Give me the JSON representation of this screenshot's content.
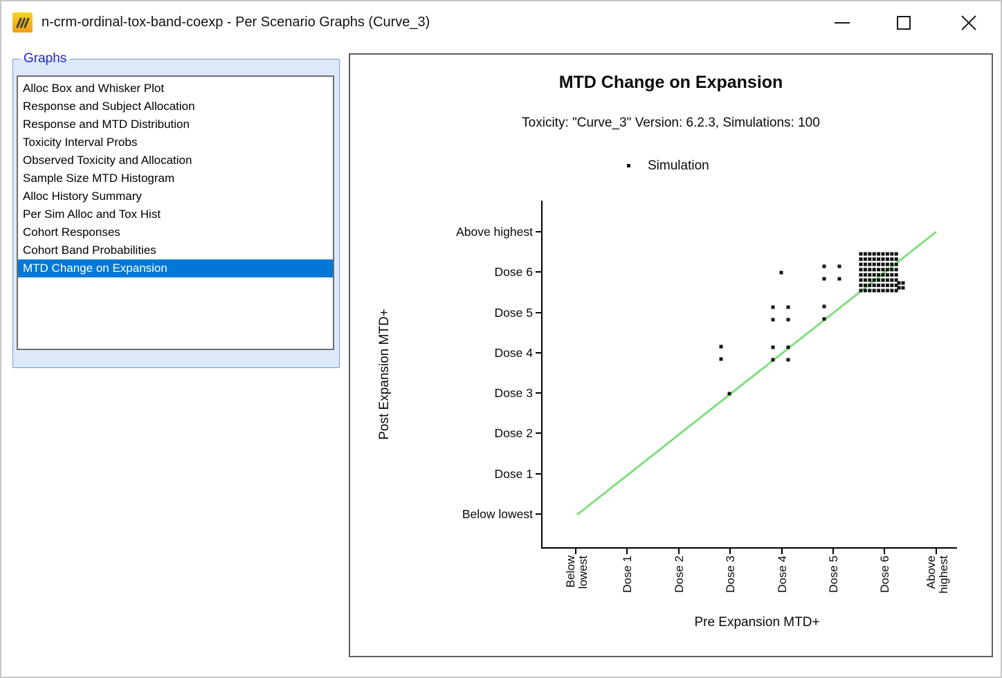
{
  "window": {
    "title": "n-crm-ordinal-tox-band-coexp - Per Scenario Graphs (Curve_3)",
    "app_icon": "east-horizon-logo",
    "controls": {
      "minimize": "minimize",
      "maximize": "maximize",
      "close": "close"
    }
  },
  "sidebar": {
    "group_label": "Graphs",
    "selected_index": 10,
    "selection_color": "#0078d7",
    "items": [
      "Alloc Box and Whisker Plot",
      "Response and Subject Allocation",
      "Response and MTD Distribution",
      "Toxicity Interval Probs",
      "Observed Toxicity and Allocation",
      "Sample Size MTD Histogram",
      "Alloc History Summary",
      "Per Sim Alloc and Tox Hist",
      "Cohort Responses",
      "Cohort Band Probabilities",
      "MTD Change on Expansion"
    ]
  },
  "chart_data": {
    "type": "scatter",
    "title": "MTD Change on Expansion",
    "subtitle": "Toxicity: \"Curve_3\" Version: 6.2.3, Simulations: 100",
    "legend": [
      {
        "label": "Simulation",
        "marker": "black-square-dot"
      }
    ],
    "xlabel": "Pre Expansion MTD+",
    "ylabel": "Post Expansion MTD+",
    "categories": [
      "Below lowest",
      "Dose 1",
      "Dose 2",
      "Dose 3",
      "Dose 4",
      "Dose 5",
      "Dose 6",
      "Above highest"
    ],
    "identity_line": {
      "from": "Below lowest",
      "to": "Above highest",
      "color": "#7de07d"
    },
    "point_color": "#111111",
    "total_simulations": 100,
    "cells": [
      {
        "x": "Dose 3",
        "y": "Dose 3",
        "count": 1
      },
      {
        "x": "Dose 3",
        "y": "Dose 4",
        "count": 2
      },
      {
        "x": "Dose 4",
        "y": "Dose 4",
        "count": 4
      },
      {
        "x": "Dose 4",
        "y": "Dose 5",
        "count": 4
      },
      {
        "x": "Dose 4",
        "y": "Dose 6",
        "count": 1
      },
      {
        "x": "Dose 5",
        "y": "Dose 5",
        "count": 2
      },
      {
        "x": "Dose 5",
        "y": "Dose 6",
        "count": 4
      },
      {
        "x": "Dose 6",
        "y": "Dose 6",
        "count": 82
      }
    ]
  }
}
